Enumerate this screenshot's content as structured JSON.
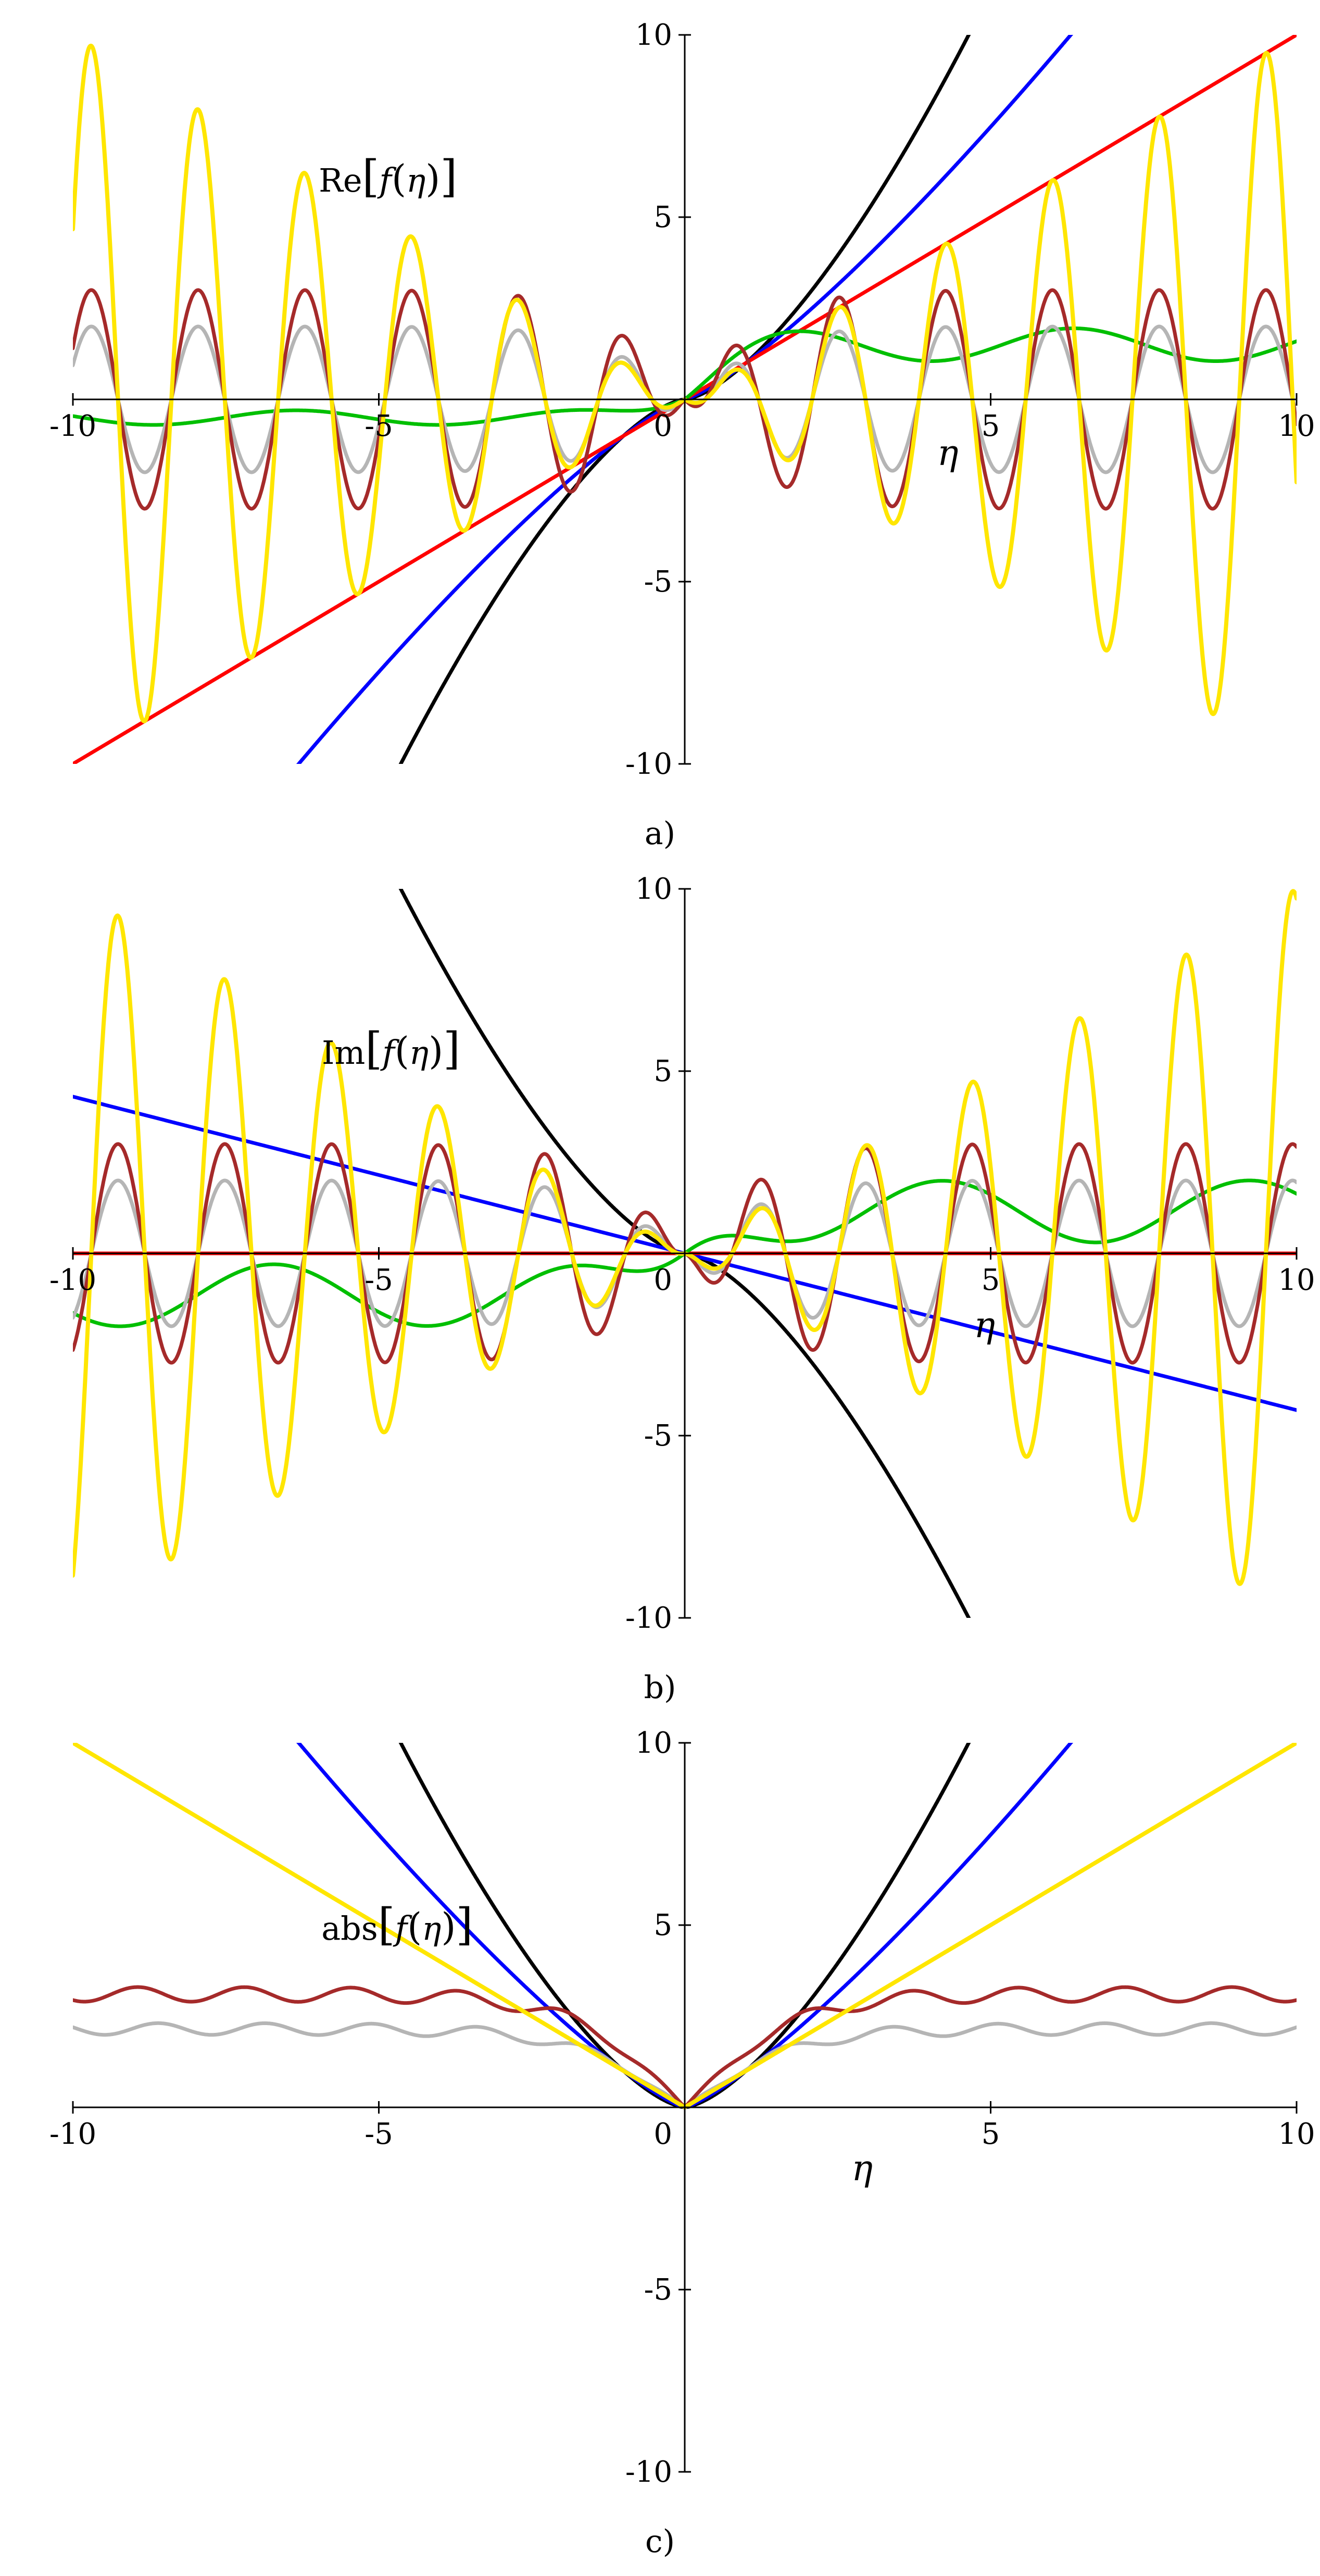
{
  "page": {
    "background": "#ffffff",
    "axis_color": "#000000"
  },
  "chart_data": [
    {
      "id": "a",
      "caption": "a)",
      "type": "line",
      "title": "Re[f(η)]",
      "title_parts": {
        "prefix": "Re",
        "lbracket": "[",
        "fname": "f",
        "lparen": "(",
        "arg": "η",
        "rparen": ")",
        "rbracket": "]"
      },
      "title_pos": {
        "x": -4.85,
        "y": 5.7
      },
      "xlabel": "η",
      "xlabel_pos": {
        "x": 4.3,
        "y": -1.8
      },
      "xlim": [
        -10,
        10
      ],
      "ylim": [
        -10,
        10
      ],
      "xticks": [
        -10,
        -5,
        5,
        10
      ],
      "yticks": [
        -10,
        -5,
        5,
        10
      ],
      "origin_label": "0",
      "grid": false,
      "legend": "none",
      "axis_color": "#000000",
      "series": [
        {
          "name": "black-curve",
          "color": "#000000",
          "width": 7,
          "fn": "odd_pow",
          "p": {
            "a": 1,
            "pow": 1.5
          }
        },
        {
          "name": "blue-curve",
          "color": "#0000ff",
          "width": 7,
          "fn": "odd_pow",
          "p": {
            "a": 1,
            "pow": 1.25
          }
        },
        {
          "name": "red-line",
          "color": "#ff0000",
          "width": 7,
          "fn": "linear",
          "p": {
            "m": 1,
            "b": 0
          }
        },
        {
          "name": "green-curve",
          "color": "#00bf00",
          "width": 7,
          "fn": "piecewise_osc",
          "p": {
            "pos": {
              "B": 1.5,
              "bs": 1.1,
              "A": 0.45,
              "w": 1.35,
              "phi": 5.56
            },
            "neg": {
              "B": -0.5,
              "bs": 1.1,
              "A": 0.2,
              "w": 1.35,
              "phi": 5.56
            }
          }
        },
        {
          "name": "gray-curve",
          "color": "#b5b5b5",
          "width": 7,
          "fn": "sin_env",
          "p": {
            "A": 2,
            "env": 1.5,
            "w": 3.6,
            "phi": 5.07
          }
        },
        {
          "name": "brown-curve",
          "color": "#a52a2a",
          "width": 7,
          "fn": "sin_env",
          "p": {
            "A": 3,
            "env": 1.5,
            "w": 3.6,
            "phi": 5.07
          }
        },
        {
          "name": "yellow-curve",
          "color": "#ffe600",
          "width": 8,
          "fn": "sin_env",
          "p": {
            "ampAbs": true,
            "w": 3.6,
            "phi": 5.07
          }
        }
      ]
    },
    {
      "id": "b",
      "caption": "b)",
      "type": "line",
      "title": "Im[f(η)]",
      "title_parts": {
        "prefix": "Im",
        "lbracket": "[",
        "fname": "f",
        "lparen": "(",
        "arg": "η",
        "rparen": ")",
        "rbracket": "]"
      },
      "title_pos": {
        "x": -4.8,
        "y": 5.2
      },
      "xlabel": "η",
      "xlabel_pos": {
        "x": 4.9,
        "y": -2.3
      },
      "xlim": [
        -10,
        10
      ],
      "ylim": [
        -10,
        10
      ],
      "xticks": [
        -10,
        -5,
        5,
        10
      ],
      "yticks": [
        -10,
        -5,
        5,
        10
      ],
      "origin_label": "0",
      "grid": false,
      "legend": "none",
      "axis_color": "#000000",
      "series": [
        {
          "name": "black-curve",
          "color": "#000000",
          "width": 7,
          "fn": "odd_pow",
          "p": {
            "a": -1,
            "pow": 1.5
          }
        },
        {
          "name": "blue-line",
          "color": "#0000ff",
          "width": 7,
          "fn": "linear",
          "p": {
            "m": -0.43,
            "b": 0
          }
        },
        {
          "name": "red-line",
          "color": "#ff0000",
          "width": 7,
          "fn": "linear",
          "p": {
            "m": 0,
            "b": 0
          }
        },
        {
          "name": "green-curve",
          "color": "#00bf00",
          "width": 7,
          "fn": "odd_osc",
          "p": {
            "B": 1.15,
            "benv": 1.2,
            "A": 0.85,
            "env": 1.5,
            "w": 1.25,
            "phi": 2.6
          }
        },
        {
          "name": "gray-curve",
          "color": "#b5b5b5",
          "width": 7,
          "fn": "sin_env",
          "p": {
            "A": 2,
            "env": 1.5,
            "w": 3.6,
            "phi": 3.5
          }
        },
        {
          "name": "brown-curve",
          "color": "#a52a2a",
          "width": 7,
          "fn": "sin_env",
          "p": {
            "A": 3,
            "env": 1.5,
            "w": 3.6,
            "phi": 3.5
          }
        },
        {
          "name": "yellow-curve",
          "color": "#ffe600",
          "width": 8,
          "fn": "sin_env",
          "p": {
            "ampAbs": true,
            "w": 3.6,
            "phi": 3.5
          }
        }
      ]
    },
    {
      "id": "c",
      "caption": "c)",
      "type": "line",
      "title": "abs[f(η)]",
      "title_parts": {
        "prefix": "abs",
        "lbracket": "[",
        "fname": "f",
        "lparen": "(",
        "arg": "η",
        "rparen": ")",
        "rbracket": "]"
      },
      "title_pos": {
        "x": -4.7,
        "y": 4.6
      },
      "xlabel": "η",
      "xlabel_pos": {
        "x": 2.9,
        "y": -2.0
      },
      "xlim": [
        -10,
        10
      ],
      "ylim": [
        -10,
        10
      ],
      "xticks": [
        -10,
        -5,
        5,
        10
      ],
      "yticks": [
        -10,
        -5,
        5,
        10
      ],
      "origin_label": "0",
      "grid": false,
      "legend": "none",
      "axis_color": "#000000",
      "series": [
        {
          "name": "black-curve",
          "color": "#000000",
          "width": 7,
          "fn": "abs_pow",
          "p": {
            "a": 1,
            "pow": 1.5
          }
        },
        {
          "name": "blue-curve",
          "color": "#0000ff",
          "width": 7,
          "fn": "abs_pow",
          "p": {
            "a": 1,
            "pow": 1.25
          }
        },
        {
          "name": "red-line",
          "color": "#ff0000",
          "width": 7,
          "fn": "abs_pow",
          "p": {
            "a": 1,
            "pow": 1
          }
        },
        {
          "name": "gray-curve",
          "color": "#b5b5b5",
          "width": 7,
          "fn": "abs_ripple",
          "p": {
            "L": 2.15,
            "env": 1.8,
            "A": 0.16,
            "w": 3.6,
            "phi": 2.0
          }
        },
        {
          "name": "brown-curve",
          "color": "#a52a2a",
          "width": 7,
          "fn": "abs_ripple",
          "p": {
            "L": 3.1,
            "env": 1.8,
            "A": 0.2,
            "w": 3.6,
            "phi": 0.8
          }
        },
        {
          "name": "yellow-curve",
          "color": "#ffe600",
          "width": 8,
          "fn": "abs_pow",
          "p": {
            "a": 1,
            "pow": 1
          }
        }
      ]
    }
  ]
}
